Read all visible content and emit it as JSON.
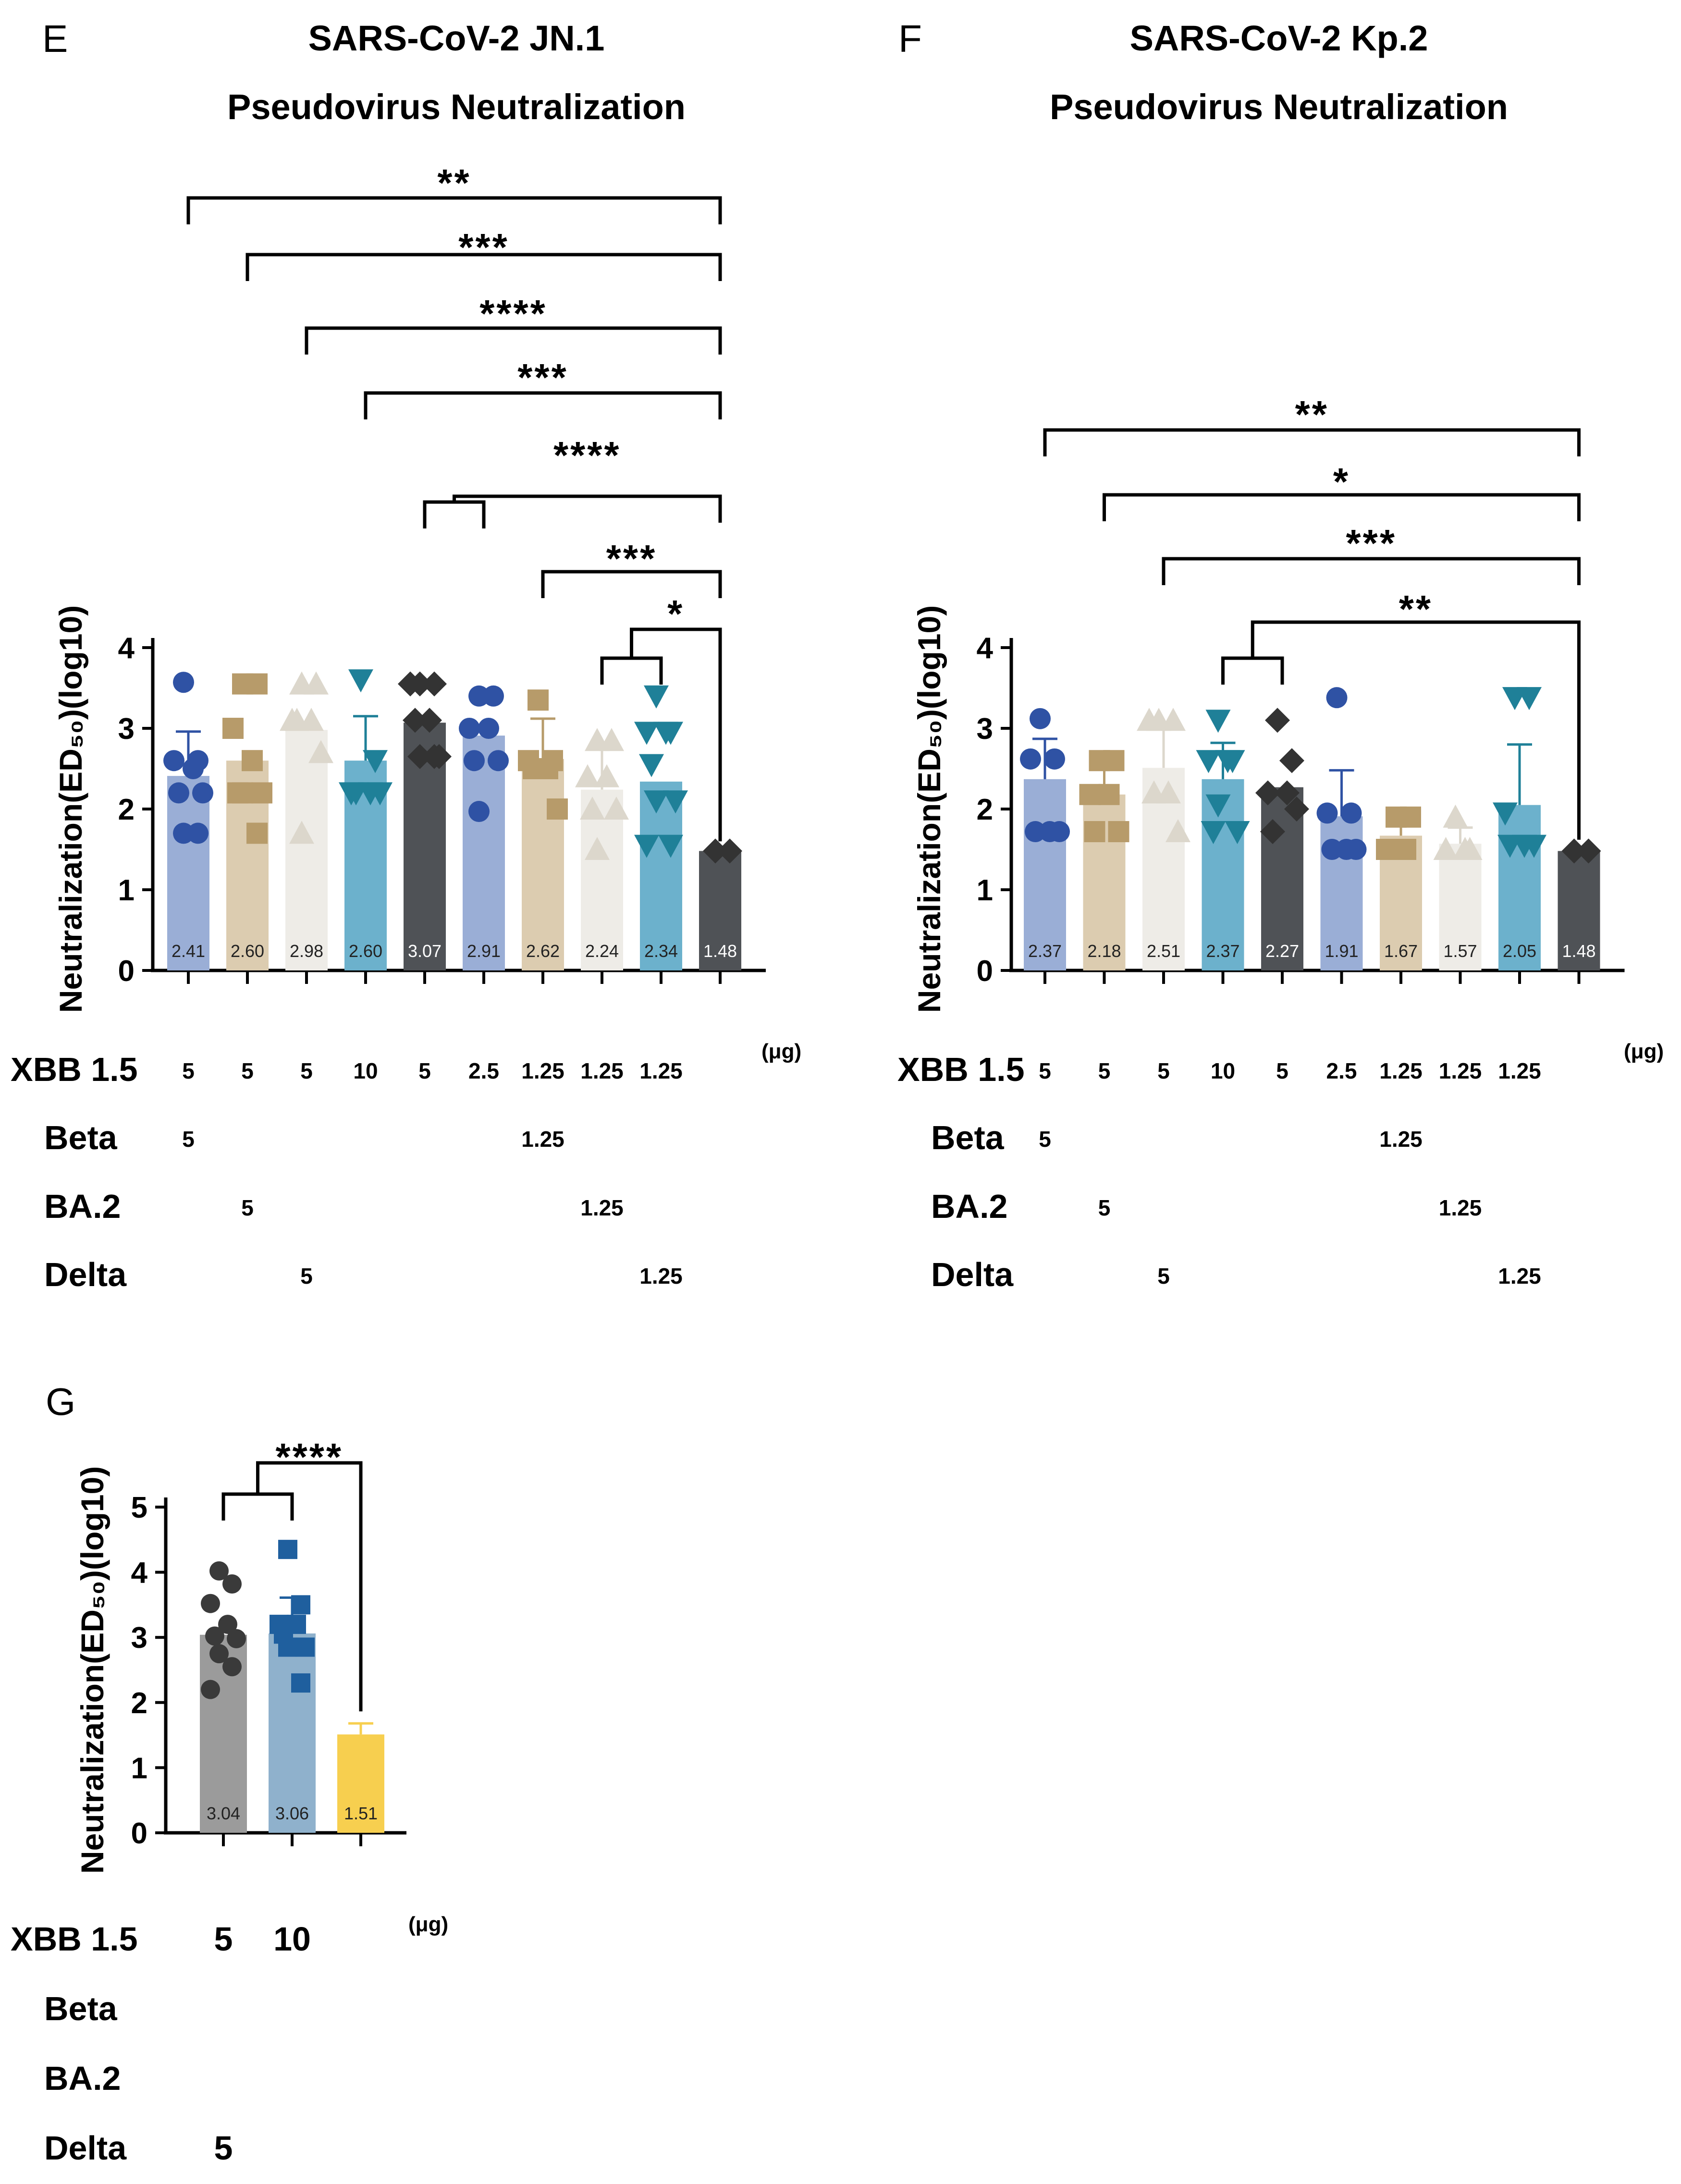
{
  "panels": [
    {
      "id": "E",
      "letter": "E",
      "title_lines": [
        "SARS-CoV-2 JN.1",
        "Pseudovirus Neutralization"
      ],
      "ylabel": "Neutralization(ED50)(log10)",
      "ylim": [
        0,
        4
      ],
      "yticks": [
        "0",
        "1",
        "2",
        "3",
        "4"
      ],
      "unit": "(μg)",
      "chart_data": {
        "type": "bar",
        "title": "SARS-CoV-2 JN.1 Pseudovirus Neutralization",
        "ylabel": "Neutralization(ED50)(log10)",
        "ylim": [
          0,
          4
        ],
        "values": [
          2.41,
          2.6,
          2.98,
          2.6,
          3.07,
          2.91,
          2.62,
          2.24,
          2.34,
          1.48
        ],
        "value_labels": [
          "2.41",
          "2.60",
          "2.98",
          "2.60",
          "3.07",
          "2.91",
          "2.62",
          "2.24",
          "2.34",
          "1.48"
        ],
        "errors": [
          0.55,
          0.0,
          0.0,
          0.55,
          0.0,
          0.0,
          0.5,
          0.5,
          0.0,
          0.0
        ],
        "bar_colors": [
          "#9aaed6",
          "#dcccb0",
          "#eeece7",
          "#6cb1cc",
          "#4f5256",
          "#9aaed6",
          "#dcccb0",
          "#eeece7",
          "#6cb1cc",
          "#4f5256"
        ],
        "marker_colors": [
          "#2f52a4",
          "#b79b6a",
          "#dcd7cc",
          "#1f8098",
          "#333333",
          "#2f52a4",
          "#b79b6a",
          "#dcd7cc",
          "#1f8098",
          "#333333"
        ],
        "markers": [
          "circle",
          "square",
          "triangle",
          "triangle-down",
          "diamond",
          "circle",
          "square",
          "triangle",
          "triangle-down",
          "diamond"
        ],
        "points": [
          [
            3.57,
            2.6,
            2.6,
            2.5,
            2.2,
            2.2,
            1.7,
            1.7
          ],
          [
            3.55,
            3.55,
            3.0,
            2.6,
            2.2,
            2.2,
            2.2,
            1.7
          ],
          [
            3.55,
            3.55,
            3.1,
            3.1,
            3.1,
            2.7,
            1.7
          ],
          [
            3.6,
            2.6,
            2.2,
            2.2,
            2.2,
            2.2
          ],
          [
            3.55,
            3.55,
            3.55,
            3.1,
            3.1,
            2.65,
            2.65,
            2.65
          ],
          [
            3.4,
            3.4,
            3.0,
            3.0,
            2.6,
            2.6,
            1.97
          ],
          [
            3.35,
            2.6,
            2.6,
            2.5,
            2.5,
            2.0
          ],
          [
            2.85,
            2.85,
            2.4,
            2.4,
            2.0,
            2.0,
            1.5
          ],
          [
            3.4,
            2.95,
            2.95,
            2.95,
            2.55,
            2.1,
            2.1,
            1.55,
            1.55
          ],
          [
            1.48,
            1.48
          ]
        ],
        "doses": {
          "XBB 1.5": [
            "5",
            "5",
            "5",
            "10",
            "5",
            "2.5",
            "1.25",
            "1.25",
            "1.25",
            ""
          ],
          "Beta": [
            "5",
            "",
            "",
            "",
            "",
            "",
            "1.25",
            "",
            "",
            ""
          ],
          "BA.2": [
            "",
            "5",
            "",
            "",
            "",
            "",
            "",
            "1.25",
            "",
            ""
          ],
          "Delta": [
            "",
            "",
            "5",
            "",
            "",
            "",
            "",
            "",
            "1.25",
            ""
          ]
        },
        "significance": [
          {
            "from": 0,
            "to": 9,
            "stars": "**"
          },
          {
            "from": 1,
            "to": 9,
            "stars": "***"
          },
          {
            "from": 2,
            "to": 9,
            "stars": "****"
          },
          {
            "from": 3,
            "to": 9,
            "stars": "***"
          },
          {
            "from": "4-5",
            "to": 9,
            "stars": "****"
          },
          {
            "from": 6,
            "to": 9,
            "stars": "***"
          },
          {
            "from": "7-8",
            "to": 9,
            "stars": "*"
          }
        ]
      }
    },
    {
      "id": "F",
      "letter": "F",
      "title_lines": [
        "SARS-CoV-2 Kp.2",
        "Pseudovirus Neutralization"
      ],
      "ylabel": "Neutralization(ED50)(log10)",
      "ylim": [
        0,
        4
      ],
      "yticks": [
        "0",
        "1",
        "2",
        "3",
        "4"
      ],
      "unit": "(μg)",
      "chart_data": {
        "type": "bar",
        "title": "SARS-CoV-2 Kp.2 Pseudovirus Neutralization",
        "ylabel": "Neutralization(ED50)(log10)",
        "ylim": [
          0,
          4
        ],
        "values": [
          2.37,
          2.18,
          2.51,
          2.37,
          2.27,
          1.91,
          1.67,
          1.57,
          2.05,
          1.48
        ],
        "value_labels": [
          "2.37",
          "2.18",
          "2.51",
          "2.37",
          "2.27",
          "1.91",
          "1.67",
          "1.57",
          "2.05",
          "1.48"
        ],
        "errors": [
          0.5,
          0.45,
          0.55,
          0.45,
          0.0,
          0.57,
          0.25,
          0.2,
          0.75,
          0.0
        ],
        "bar_colors": [
          "#9aaed6",
          "#dcccb0",
          "#eeece7",
          "#6cb1cc",
          "#4f5256",
          "#9aaed6",
          "#dcccb0",
          "#eeece7",
          "#6cb1cc",
          "#4f5256"
        ],
        "marker_colors": [
          "#2f52a4",
          "#b79b6a",
          "#dcd7cc",
          "#1f8098",
          "#333333",
          "#2f52a4",
          "#b79b6a",
          "#dcd7cc",
          "#1f8098",
          "#333333"
        ],
        "markers": [
          "circle",
          "square",
          "triangle",
          "triangle-down",
          "diamond",
          "circle",
          "square",
          "triangle",
          "triangle-down",
          "diamond"
        ],
        "points": [
          [
            3.12,
            2.62,
            2.62,
            1.72,
            1.72,
            1.72
          ],
          [
            2.6,
            2.6,
            2.18,
            2.18,
            1.72,
            1.72
          ],
          [
            3.1,
            3.1,
            3.1,
            2.2,
            2.2,
            1.72
          ],
          [
            3.1,
            2.6,
            2.6,
            2.6,
            1.72,
            1.72,
            2.05
          ],
          [
            3.1,
            2.6,
            2.2,
            2.2,
            1.72,
            2.0
          ],
          [
            3.38,
            1.95,
            1.95,
            1.5,
            1.5,
            1.5
          ],
          [
            1.9,
            1.9,
            1.5,
            1.5,
            1.5
          ],
          [
            1.9,
            1.5,
            1.5,
            1.5
          ],
          [
            3.38,
            3.38,
            1.95,
            1.55,
            1.55,
            1.55
          ],
          [
            1.48,
            1.48
          ]
        ],
        "doses": {
          "XBB 1.5": [
            "5",
            "5",
            "5",
            "10",
            "5",
            "2.5",
            "1.25",
            "1.25",
            "1.25",
            ""
          ],
          "Beta": [
            "5",
            "",
            "",
            "",
            "",
            "",
            "1.25",
            "",
            "",
            ""
          ],
          "BA.2": [
            "",
            "5",
            "",
            "",
            "",
            "",
            "",
            "1.25",
            "",
            ""
          ],
          "Delta": [
            "",
            "",
            "5",
            "",
            "",
            "",
            "",
            "",
            "1.25",
            ""
          ]
        },
        "significance": [
          {
            "from": 0,
            "to": 9,
            "stars": "**"
          },
          {
            "from": 1,
            "to": 9,
            "stars": "*"
          },
          {
            "from": 2,
            "to": 9,
            "stars": "***"
          },
          {
            "from": "3-4",
            "to": 9,
            "stars": "**"
          }
        ]
      }
    },
    {
      "id": "G",
      "letter": "G",
      "title_lines": [],
      "ylabel": "Neutralization(ED50)(log10)",
      "ylim": [
        0,
        5
      ],
      "yticks": [
        "0",
        "1",
        "2",
        "3",
        "4",
        "5"
      ],
      "unit": "(μg)",
      "chart_data": {
        "type": "bar",
        "title": "",
        "ylabel": "Neutralization(ED50)(log10)",
        "ylim": [
          0,
          5
        ],
        "values": [
          3.04,
          3.06,
          1.51
        ],
        "value_labels": [
          "3.04",
          "3.06",
          "1.51"
        ],
        "errors": [
          0.0,
          0.55,
          0.17
        ],
        "bar_colors": [
          "#9b9b9b",
          "#8fb1cc",
          "#f7cf4f"
        ],
        "marker_colors": [
          "#3a3a3a",
          "#1f5f9e",
          "#f7cf4f"
        ],
        "markers": [
          "circle",
          "square",
          "none"
        ],
        "points": [
          [
            4.02,
            3.82,
            3.52,
            3.2,
            3.02,
            2.98,
            2.75,
            2.55,
            2.2
          ],
          [
            4.35,
            3.5,
            3.2,
            3.2,
            3.05,
            2.85,
            2.85,
            2.3
          ],
          []
        ],
        "doses": {
          "XBB 1.5": [
            "5",
            "10",
            ""
          ],
          "Beta": [
            "",
            "",
            ""
          ],
          "BA.2": [
            "",
            "",
            ""
          ],
          "Delta": [
            "5",
            "",
            ""
          ]
        },
        "significance": [
          {
            "from": "0-1",
            "to": 2,
            "stars": "****"
          }
        ]
      }
    }
  ]
}
